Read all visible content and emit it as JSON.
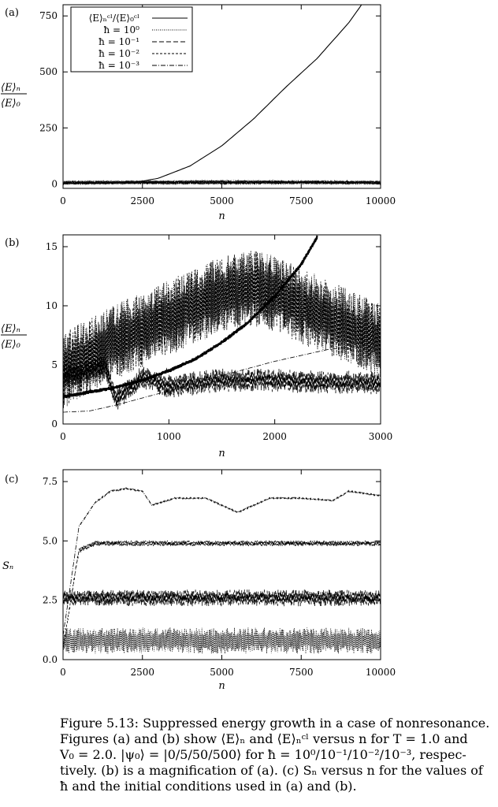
{
  "panels": {
    "a": {
      "label": "(a)"
    },
    "b": {
      "label": "(b)"
    },
    "c": {
      "label": "(c)"
    }
  },
  "caption": {
    "l1": "Figure 5.13: Suppressed energy growth in a case of nonresonance.",
    "l2": "Figures (a) and (b) show ⟨E⟩ₙ and ⟨E⟩ₙᶜˡ versus n for T = 1.0 and",
    "l3": "V₀ = 2.0. |ψ₀⟩ = |0/5/50/500⟩ for ħ = 10⁰/10⁻¹/10⁻²/10⁻³, respec-",
    "l4": "tively. (b) is a magnification of (a). (c) Sₙ versus n for the values of",
    "l5": "ħ and the initial conditions used in (a) and (b)."
  },
  "chart_data": [
    {
      "panel": "(a)",
      "type": "line",
      "xlabel": "n",
      "ylabel": "⟨E⟩ₙ / ⟨E⟩₀",
      "xlim": [
        0,
        10000
      ],
      "ylim": [
        -20,
        800
      ],
      "xticks": [
        "0",
        "2500",
        "5000",
        "7500",
        "10000"
      ],
      "yticks": [
        "0",
        "250",
        "500",
        "750"
      ],
      "legend": [
        "⟨E⟩ₙᶜˡ/⟨E⟩₀ᶜˡ",
        "ħ = 10⁰",
        "ħ = 10⁻¹",
        "ħ = 10⁻²",
        "ħ = 10⁻³"
      ],
      "legend_position": "top-left",
      "series": [
        {
          "name": "⟨E⟩ₙᶜˡ/⟨E⟩₀ᶜˡ",
          "style": "solid",
          "x": [
            0,
            1000,
            2000,
            2500,
            3000,
            4000,
            5000,
            6000,
            7000,
            8000,
            9000,
            9400
          ],
          "y": [
            2,
            3,
            5,
            12,
            25,
            80,
            170,
            290,
            430,
            560,
            720,
            800
          ]
        },
        {
          "name": "ħ = 10⁰",
          "style": "dotted",
          "x": [
            0,
            2500,
            5000,
            7500,
            10000
          ],
          "y": [
            8,
            9,
            11,
            10,
            8
          ]
        },
        {
          "name": "ħ = 10⁻¹",
          "style": "dashed",
          "x": [
            0,
            2500,
            5000,
            7500,
            10000
          ],
          "y": [
            3,
            4,
            3,
            4,
            3
          ]
        },
        {
          "name": "ħ = 10⁻²",
          "style": "short-dashed",
          "x": [
            0,
            2500,
            5000,
            7500,
            10000
          ],
          "y": [
            8,
            8,
            10,
            9,
            8
          ]
        },
        {
          "name": "ħ = 10⁻³",
          "style": "dash-dot",
          "x": [
            0,
            2500,
            5000,
            7500,
            10000
          ],
          "y": [
            2,
            6,
            6,
            6,
            6
          ]
        }
      ]
    },
    {
      "panel": "(b)",
      "type": "line",
      "xlabel": "n",
      "ylabel": "⟨E⟩ₙ / ⟨E⟩₀",
      "xlim": [
        0,
        3000
      ],
      "ylim": [
        0,
        16
      ],
      "xticks": [
        "0",
        "1000",
        "2000",
        "3000"
      ],
      "yticks": [
        "0",
        "5",
        "10",
        "15"
      ],
      "series": [
        {
          "name": "⟨E⟩ₙᶜˡ/⟨E⟩₀ᶜˡ",
          "style": "solid",
          "x": [
            0,
            250,
            500,
            750,
            1000,
            1250,
            1500,
            1750,
            2000,
            2250,
            2400
          ],
          "y": [
            2.3,
            2.7,
            3.1,
            3.7,
            4.5,
            5.5,
            6.9,
            8.6,
            10.8,
            13.5,
            15.8
          ]
        },
        {
          "name": "ħ = 10⁰",
          "style": "dotted",
          "x": [
            0,
            500,
            1000,
            1500,
            1800,
            2000,
            2500,
            3000
          ],
          "y": [
            4.5,
            7,
            9,
            11,
            11.5,
            11,
            9,
            7
          ]
        },
        {
          "name": "ħ = 10⁻¹",
          "style": "dashed",
          "x": [
            0,
            400,
            500,
            750,
            1000,
            1500,
            2000,
            2500,
            3000
          ],
          "y": [
            4,
            4.8,
            2,
            4,
            3.2,
            3.7,
            3.7,
            3.5,
            3.5
          ]
        },
        {
          "name": "ħ = 10⁻²",
          "style": "short-dashed",
          "x": [
            0,
            500,
            1000,
            1500,
            1800,
            2000,
            2500,
            3000
          ],
          "y": [
            4.5,
            7,
            9,
            11,
            11.5,
            11,
            9,
            7
          ]
        },
        {
          "name": "ħ = 10⁻³",
          "style": "dash-dot",
          "x": [
            0,
            250,
            500,
            1000,
            1500,
            2000,
            2500,
            2700
          ],
          "y": [
            1,
            1.1,
            1.6,
            2.8,
            4.1,
            5.3,
            6.3,
            6.5
          ]
        }
      ]
    },
    {
      "panel": "(c)",
      "type": "line",
      "xlabel": "n",
      "ylabel": "Sₙ",
      "xlim": [
        0,
        10000
      ],
      "ylim": [
        0,
        8
      ],
      "xticks": [
        "0",
        "2500",
        "5000",
        "7500",
        "10000"
      ],
      "yticks": [
        "0.0",
        "2.5",
        "5.0",
        "7.5"
      ],
      "series": [
        {
          "name": "ħ = 10⁰",
          "style": "dotted",
          "x": [
            0,
            2500,
            5000,
            7500,
            10000
          ],
          "y": [
            0.8,
            0.8,
            0.8,
            0.8,
            0.8
          ]
        },
        {
          "name": "ħ = 10⁻¹",
          "style": "dashed",
          "x": [
            0,
            2500,
            5000,
            7500,
            10000
          ],
          "y": [
            2.6,
            2.6,
            2.6,
            2.6,
            2.6
          ]
        },
        {
          "name": "ħ = 10⁻²",
          "style": "short-dashed",
          "x": [
            0,
            500,
            1000,
            2500,
            5000,
            7500,
            10000
          ],
          "y": [
            0.5,
            4.6,
            4.9,
            4.9,
            4.9,
            4.9,
            4.9
          ]
        },
        {
          "name": "ħ = 10⁻³",
          "style": "dash-dot",
          "x": [
            0,
            500,
            1000,
            1500,
            2000,
            2500,
            2800,
            3500,
            4500,
            5500,
            6500,
            7500,
            8500,
            9000,
            10000
          ],
          "y": [
            1,
            5.6,
            6.6,
            7.1,
            7.2,
            7.1,
            6.5,
            6.8,
            6.8,
            6.2,
            6.8,
            6.8,
            6.7,
            7.1,
            6.9
          ]
        }
      ]
    }
  ]
}
